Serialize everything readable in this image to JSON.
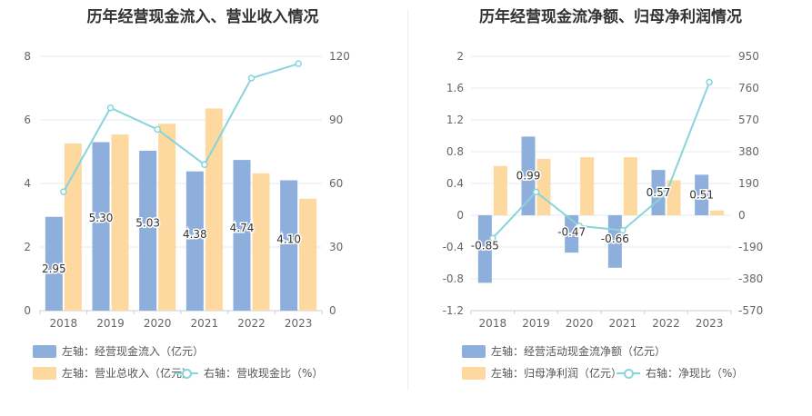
{
  "charts": [
    {
      "id": "left",
      "title": "历年经营现金流入、营业收入情况",
      "legend": [
        {
          "label": "左轴：经营现金流入（亿元）",
          "kind": "bar",
          "color": "#8eaedc"
        },
        {
          "label": "左轴：营业总收入（亿元）",
          "kind": "bar",
          "color": "#fdd89f"
        },
        {
          "label": "右轴：营收现金比（%）",
          "kind": "line",
          "color": "#88d4dc"
        }
      ]
    },
    {
      "id": "right",
      "title": "历年经营现金流净额、归母净利润情况",
      "legend": [
        {
          "label": "左轴：经营活动现金流净额（亿元）",
          "kind": "bar",
          "color": "#8eaedc"
        },
        {
          "label": "左轴：归母净利润（亿元）",
          "kind": "bar",
          "color": "#fdd89f"
        },
        {
          "label": "右轴：净现比（%）",
          "kind": "line",
          "color": "#88d4dc"
        }
      ]
    }
  ],
  "chart_data": [
    {
      "type": "bar",
      "title": "历年经营现金流入、营业收入情况",
      "categories": [
        "2018",
        "2019",
        "2020",
        "2021",
        "2022",
        "2023"
      ],
      "y_left": {
        "range": [
          0,
          8
        ],
        "ticks": [
          "0",
          "2",
          "4",
          "6",
          "8"
        ],
        "tick_values": [
          0,
          2,
          4,
          6,
          8
        ]
      },
      "y_right": {
        "range": [
          0,
          120
        ],
        "ticks": [
          "0",
          "30",
          "60",
          "90",
          "120"
        ],
        "tick_values": [
          0,
          30,
          60,
          90,
          120
        ]
      },
      "grid": true,
      "series": [
        {
          "name": "经营现金流入（亿元）",
          "axis": "left",
          "type": "bar",
          "color": "#8eaedc",
          "values": [
            2.95,
            5.3,
            5.03,
            4.38,
            4.74,
            4.1
          ],
          "labels": [
            "2.95",
            "5.30",
            "5.03",
            "4.38",
            "4.74",
            "4.10"
          ]
        },
        {
          "name": "营业总收入（亿元）",
          "axis": "left",
          "type": "bar",
          "color": "#fdd89f",
          "values": [
            5.26,
            5.54,
            5.88,
            6.36,
            4.32,
            3.52
          ]
        },
        {
          "name": "营收现金比（%）",
          "axis": "right",
          "type": "line",
          "color": "#88d4dc",
          "values": [
            56.1,
            95.7,
            85.5,
            68.9,
            109.7,
            116.5
          ]
        }
      ]
    },
    {
      "type": "bar",
      "title": "历年经营现金流净额、归母净利润情况",
      "categories": [
        "2018",
        "2019",
        "2020",
        "2021",
        "2022",
        "2023"
      ],
      "y_left": {
        "range": [
          -1.2,
          2
        ],
        "ticks": [
          "-1.2",
          "-0.8",
          "-0.4",
          "0",
          "0.4",
          "0.8",
          "1.2",
          "1.6",
          "2"
        ],
        "tick_values": [
          -1.2,
          -0.8,
          -0.4,
          0,
          0.4,
          0.8,
          1.2,
          1.6,
          2
        ]
      },
      "y_right": {
        "range": [
          -570,
          950
        ],
        "ticks": [
          "-570",
          "-380",
          "-190",
          "0",
          "190",
          "380",
          "570",
          "760",
          "950"
        ],
        "tick_values": [
          -570,
          -380,
          -190,
          0,
          190,
          380,
          570,
          760,
          950
        ]
      },
      "grid": true,
      "series": [
        {
          "name": "经营活动现金流净额（亿元）",
          "axis": "left",
          "type": "bar",
          "color": "#8eaedc",
          "values": [
            -0.85,
            0.99,
            -0.47,
            -0.66,
            0.57,
            0.51
          ],
          "labels": [
            "-0.85",
            "0.99",
            "-0.47",
            "-0.66",
            "0.57",
            "0.51"
          ]
        },
        {
          "name": "归母净利润（亿元）",
          "axis": "left",
          "type": "bar",
          "color": "#fdd89f",
          "values": [
            0.62,
            0.71,
            0.73,
            0.73,
            0.44,
            0.06
          ]
        },
        {
          "name": "净现比（%）",
          "axis": "right",
          "type": "line",
          "color": "#88d4dc",
          "values": [
            -137,
            139,
            -64,
            -90,
            130,
            795
          ]
        }
      ]
    }
  ]
}
